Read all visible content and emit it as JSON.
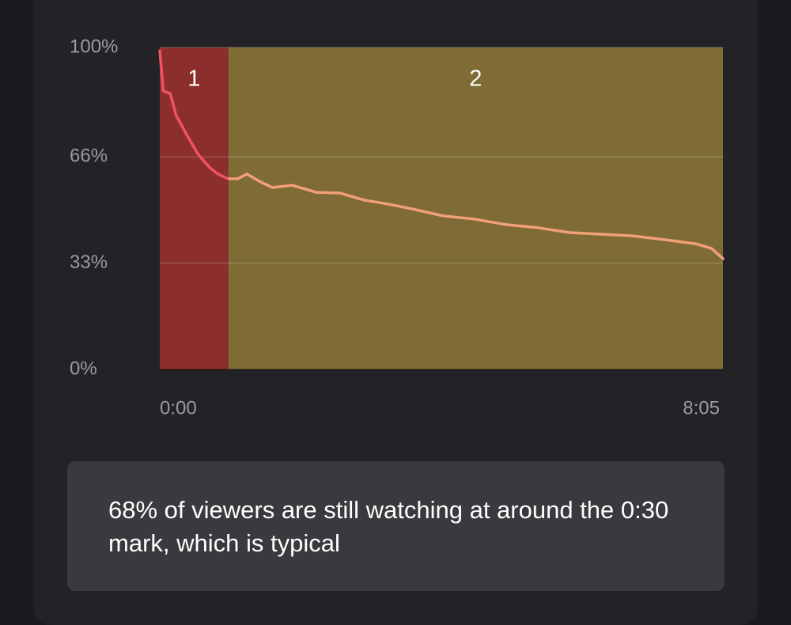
{
  "chart_data": {
    "type": "line",
    "x": [
      0,
      3,
      9,
      14,
      23,
      33,
      43,
      50,
      59,
      67,
      75,
      87,
      97,
      114,
      135,
      155,
      176,
      196,
      217,
      244,
      271,
      298,
      326,
      353,
      380,
      407,
      435,
      462,
      475,
      485
    ],
    "series": [
      {
        "name": "Viewers",
        "color": "#f2a077",
        "values": [
          99,
          86.5,
          85.7,
          79,
          73,
          66.8,
          62.7,
          60.7,
          59.2,
          59.2,
          60.7,
          58.2,
          56.5,
          57.2,
          55,
          54.8,
          52.6,
          51.4,
          49.9,
          47.7,
          46.7,
          45,
          44,
          42.5,
          42,
          41.5,
          40.3,
          39,
          37.6,
          34.4
        ]
      }
    ],
    "regions": [
      {
        "label": "1",
        "start": 0,
        "end": 59,
        "color": "#8c2f2c",
        "line_color": "#f0535c"
      },
      {
        "label": "2",
        "start": 59,
        "end": 485,
        "color": "#7e6b36",
        "line_color": "#f2a077"
      }
    ],
    "xlim": [
      0,
      485
    ],
    "xticks": [
      {
        "value": 0,
        "label": "0:00"
      },
      {
        "value": 485,
        "label": "8:05"
      }
    ],
    "ylim": [
      0,
      100
    ],
    "yticks": [
      {
        "value": 0,
        "label": "0%"
      },
      {
        "value": 33,
        "label": "33%"
      },
      {
        "value": 66,
        "label": "66%"
      },
      {
        "value": 100,
        "label": "100%"
      }
    ],
    "grid": true
  },
  "insight": {
    "text": "68% of viewers are still watching at around the 0:30 mark, which is typical"
  }
}
